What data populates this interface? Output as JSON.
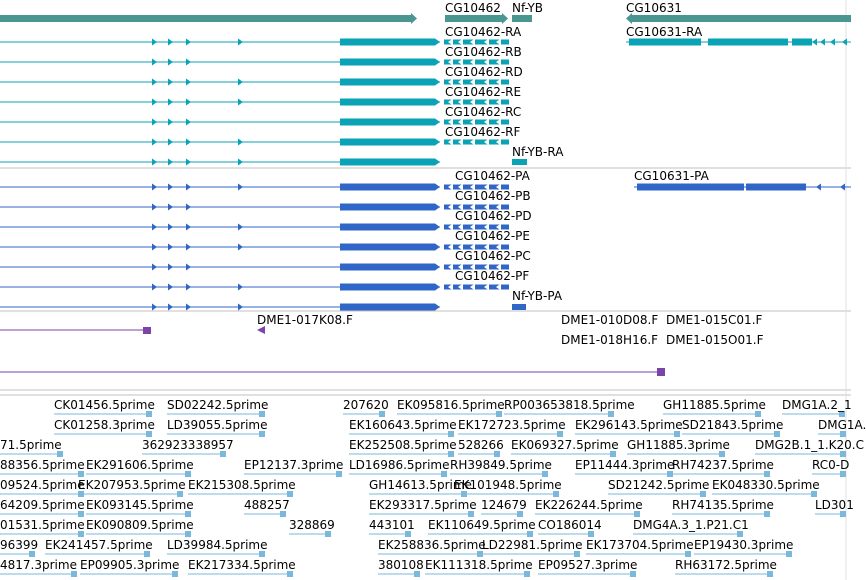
{
  "colors": {
    "gene": "#4a9691",
    "transcript_a": "#0aa3b5",
    "transcript_b": "#3066c7",
    "clone": "#7a44a8",
    "est": "#7ab8dc",
    "divider": "#c0c0c0",
    "text": "#000000"
  },
  "tracks": {
    "gene_labels": [
      "CG10462",
      "Nf-YB",
      "CG10631"
    ],
    "transcripts_a": [
      "CG10462-RA",
      "CG10631-RA",
      "CG10462-RB",
      "CG10462-RD",
      "CG10462-RE",
      "CG10462-RC",
      "CG10462-RF",
      "Nf-YB-RA"
    ],
    "transcripts_b": [
      "CG10462-PA",
      "CG10631-PA",
      "CG10462-PB",
      "CG10462-PD",
      "CG10462-PE",
      "CG10462-PC",
      "CG10462-PF",
      "Nf-YB-PA"
    ],
    "clones": [
      "DME1-017K08.F",
      "DME1-010D08.F",
      "DME1-015C01.F",
      "DME1-018H16.F",
      "DME1-015O01.F"
    ],
    "ests": [
      "CK01456.5prime",
      "SD02242.5prime",
      "207620",
      "EK095816.5prime",
      "RP003653818.5prime",
      "GH11885.5prime",
      "DMG1A.2_1",
      "CK01258.3prime",
      "LD39055.5prime",
      "EK160643.5prime",
      "EK172723.5prime",
      "EK296143.5prime",
      "SD21843.5prime",
      "DMG1A.",
      "71.5prime",
      "362923338957",
      "EK252508.5prime",
      "528266",
      "EK069327.5prime",
      "GH11885.3prime",
      "DMG2B.1_1.K20.C",
      "88356.5prime",
      "EK291606.5prime",
      "EP12137.3prime",
      "LD16986.5prime",
      "RH39849.5prime",
      "EP11444.3prime",
      "RH74237.5prime",
      "RC0-D",
      "09524.5prime",
      "EK207953.5prime",
      "EK215308.5prime",
      "GH14613.5prime",
      "EK101948.5prime",
      "SD21242.5prime",
      "EK048330.5prime",
      "64209.5prime",
      "EK093145.5prime",
      "488257",
      "EK293317.5prime",
      "124679",
      "EK226244.5prime",
      "RH74135.5prime",
      "LD301",
      "01531.5prime",
      "EK090809.5prime",
      "328869",
      "443101",
      "EK110649.5prime",
      "CO186014",
      "DMG4A.3_1.P21.C1",
      "96399",
      "EK241457.5prime",
      "LD39984.5prime",
      "EK258836.5prime",
      "LD22981.5prime",
      "EK173704.5prime",
      "EP19430.3prime",
      "4817.3prime",
      "EP09905.3prime",
      "EK217334.5prime",
      "380108",
      "EK111318.5prime",
      "EP09527.3prime",
      "RH63172.5prime"
    ]
  }
}
